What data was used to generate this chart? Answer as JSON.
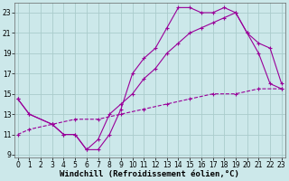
{
  "bg": "#cce8ea",
  "grid_color": "#aacccc",
  "lc": "#990099",
  "xlim": [
    -0.3,
    23.3
  ],
  "ylim": [
    8.7,
    24.0
  ],
  "xticks": [
    0,
    1,
    2,
    3,
    4,
    5,
    6,
    7,
    8,
    9,
    10,
    11,
    12,
    13,
    14,
    15,
    16,
    17,
    18,
    19,
    20,
    21,
    22,
    23
  ],
  "yticks": [
    9,
    11,
    13,
    15,
    17,
    19,
    21,
    23
  ],
  "xlabel": "Windchill (Refroidissement éolien,°C)",
  "tick_fs": 5.5,
  "xlabel_fs": 6.5,
  "curve1_x": [
    0,
    1,
    3,
    4,
    5,
    6,
    7,
    8,
    9,
    10,
    11,
    12,
    13,
    14,
    15,
    16,
    17,
    18,
    19,
    20,
    21,
    22,
    23
  ],
  "curve1_y": [
    14.5,
    13,
    12,
    11,
    11,
    9.5,
    9.5,
    11,
    13.5,
    17,
    18.5,
    19.5,
    21.5,
    23.5,
    23.5,
    23,
    23,
    23.5,
    23,
    21,
    19,
    16,
    15.5
  ],
  "curve2_x": [
    0,
    1,
    3,
    4,
    5,
    6,
    7,
    8,
    9,
    10,
    11,
    12,
    13,
    14,
    15,
    16,
    17,
    18,
    19,
    20,
    21,
    22,
    23
  ],
  "curve2_y": [
    14.5,
    13,
    12,
    11,
    11,
    9.5,
    10.5,
    13,
    14,
    15,
    16.5,
    17.5,
    19,
    20,
    21,
    21.5,
    22,
    22.5,
    23,
    21,
    20,
    19.5,
    16
  ],
  "curve3_x": [
    0,
    1,
    3,
    5,
    7,
    9,
    11,
    13,
    15,
    17,
    19,
    21,
    23
  ],
  "curve3_y": [
    11,
    11.5,
    12,
    12.5,
    12.5,
    13,
    13.5,
    14,
    14.5,
    15,
    15,
    15.5,
    15.5
  ]
}
